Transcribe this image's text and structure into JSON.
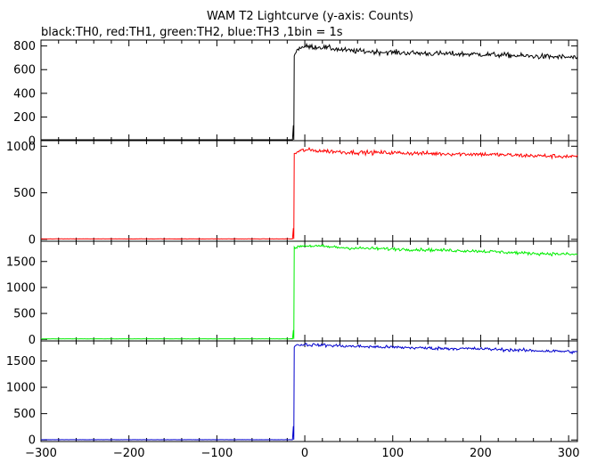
{
  "chart_data": {
    "type": "line",
    "title": "WAM T2 Lightcurve (y-axis: Counts)",
    "subtitle": "black:TH0, red:TH1, green:TH2, blue:TH3 ,1bin = 1s",
    "xlabel": "",
    "xlim": [
      -300,
      310
    ],
    "x_ticks": [
      -300,
      -200,
      -100,
      0,
      100,
      200,
      300
    ],
    "x_tick_labels": [
      "−300",
      "−200",
      "−100",
      "0",
      "100",
      "200",
      "300"
    ],
    "grid": false,
    "legend": "none",
    "panels": [
      {
        "name": "TH0",
        "color": "#000000",
        "ylim": [
          0,
          850
        ],
        "y_ticks": [
          0,
          200,
          400,
          600,
          800
        ],
        "y_tick_labels": [
          "0",
          "200",
          "400",
          "600",
          "800"
        ],
        "pre_level": 3,
        "spike": {
          "x": -13,
          "y": 130
        },
        "rise_x": -12,
        "post": {
          "x": [
            -12,
            -5,
            0,
            20,
            50,
            100,
            150,
            200,
            250,
            300,
            310
          ],
          "y": [
            740,
            790,
            795,
            790,
            760,
            745,
            735,
            730,
            715,
            705,
            700
          ]
        },
        "noise": 22
      },
      {
        "name": "TH1",
        "color": "#ff0000",
        "ylim": [
          -20,
          1060
        ],
        "y_ticks": [
          0,
          500,
          1000
        ],
        "y_tick_labels": [
          "0",
          "500",
          "1000"
        ],
        "pre_level": 5,
        "spike": {
          "x": -13,
          "y": 120
        },
        "rise_x": -12,
        "post": {
          "x": [
            -12,
            -5,
            0,
            20,
            50,
            100,
            150,
            200,
            250,
            300,
            310
          ],
          "y": [
            920,
            950,
            960,
            950,
            935,
            930,
            920,
            915,
            900,
            890,
            885
          ]
        },
        "noise": 22
      },
      {
        "name": "TH2",
        "color": "#00ee00",
        "ylim": [
          -30,
          1890
        ],
        "y_ticks": [
          0,
          500,
          1000,
          1500
        ],
        "y_tick_labels": [
          "0",
          "500",
          "1000",
          "1500"
        ],
        "pre_level": 10,
        "spike": {
          "x": -13,
          "y": 180
        },
        "rise_x": -12,
        "post": {
          "x": [
            -12,
            -5,
            0,
            20,
            50,
            100,
            150,
            200,
            250,
            300,
            310
          ],
          "y": [
            1760,
            1800,
            1805,
            1790,
            1760,
            1740,
            1720,
            1700,
            1660,
            1640,
            1630
          ]
        },
        "noise": 30
      },
      {
        "name": "TH3",
        "color": "#0000cc",
        "ylim": [
          -30,
          1880
        ],
        "y_ticks": [
          0,
          500,
          1000,
          1500
        ],
        "y_tick_labels": [
          "0",
          "500",
          "1000",
          "1500"
        ],
        "pre_level": 5,
        "spike": {
          "x": -13,
          "y": 260
        },
        "rise_x": -12,
        "post": {
          "x": [
            -12,
            -5,
            0,
            20,
            50,
            100,
            150,
            200,
            250,
            300,
            310
          ],
          "y": [
            1790,
            1810,
            1810,
            1800,
            1780,
            1760,
            1740,
            1730,
            1700,
            1680,
            1660
          ]
        },
        "noise": 30
      }
    ]
  }
}
